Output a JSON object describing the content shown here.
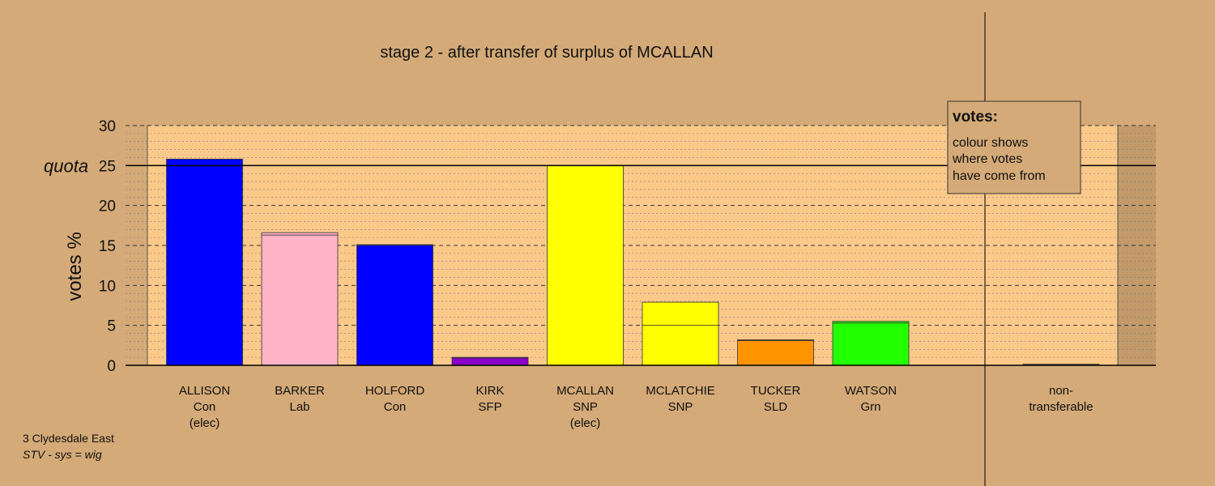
{
  "chart_data": {
    "type": "bar",
    "title": "stage 2 - after transfer of surplus of MCALLAN",
    "ylabel": "votes %",
    "quota_label": "quota",
    "quota": 25,
    "ylim": [
      0,
      30
    ],
    "yticks": [
      "0",
      "5",
      "10",
      "15",
      "20",
      "25",
      "30"
    ],
    "grid": true,
    "candidates": [
      {
        "name": "ALLISON",
        "party": "Con",
        "status": "(elec)",
        "segments": [
          {
            "value": 25.8,
            "color": "#0000ff"
          }
        ]
      },
      {
        "name": "BARKER",
        "party": "Lab",
        "status": "",
        "segments": [
          {
            "value": 16.3,
            "color": "#ffb3c6"
          },
          {
            "value": 0.3,
            "color": "#ffb3c6"
          }
        ]
      },
      {
        "name": "HOLFORD",
        "party": "Con",
        "status": "",
        "segments": [
          {
            "value": 15.0,
            "color": "#0000ff"
          },
          {
            "value": 0.1,
            "color": "#0000ff"
          }
        ]
      },
      {
        "name": "KIRK",
        "party": "SFP",
        "status": "",
        "segments": [
          {
            "value": 0.9,
            "color": "#8b00cc"
          },
          {
            "value": 0.1,
            "color": "#8b00cc"
          }
        ]
      },
      {
        "name": "MCALLAN",
        "party": "SNP",
        "status": "(elec)",
        "segments": [
          {
            "value": 25.0,
            "color": "#ffff00"
          }
        ]
      },
      {
        "name": "MCLATCHIE",
        "party": "SNP",
        "status": "",
        "segments": [
          {
            "value": 5.0,
            "color": "#ffff00"
          },
          {
            "value": 2.9,
            "color": "#ffff00"
          }
        ]
      },
      {
        "name": "TUCKER",
        "party": "SLD",
        "status": "",
        "segments": [
          {
            "value": 3.1,
            "color": "#ff9400"
          },
          {
            "value": 0.1,
            "color": "#ff9400"
          }
        ]
      },
      {
        "name": "WATSON",
        "party": "Grn",
        "status": "",
        "segments": [
          {
            "value": 5.3,
            "color": "#22ff00"
          },
          {
            "value": 0.2,
            "color": "#22ff00"
          }
        ]
      }
    ],
    "nontransferable": {
      "label_line1": "non-",
      "label_line2": "transferable",
      "value": 0.15,
      "color": "#b08a5a"
    },
    "legend": {
      "title": "votes:",
      "lines": [
        "colour shows",
        "where votes",
        "have come from"
      ]
    }
  },
  "footer": {
    "line1": "3 Clydesdale East",
    "line2": "STV - sys = wig"
  },
  "colors": {
    "background": "#d4aa78",
    "plot_bg": "#fbc98a",
    "shade": "#c29a6b"
  }
}
